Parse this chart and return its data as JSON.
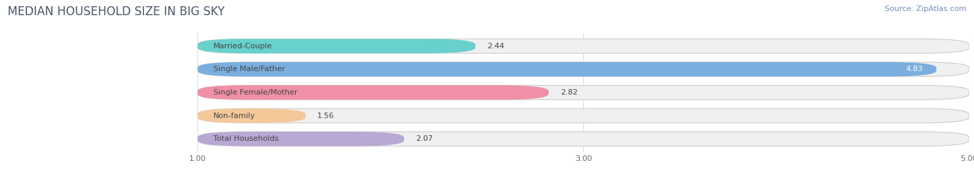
{
  "title": "MEDIAN HOUSEHOLD SIZE IN BIG SKY",
  "source": "Source: ZipAtlas.com",
  "categories": [
    "Married-Couple",
    "Single Male/Father",
    "Single Female/Mother",
    "Non-family",
    "Total Households"
  ],
  "values": [
    2.44,
    4.83,
    2.82,
    1.56,
    2.07
  ],
  "bar_colors": [
    "#68d1cc",
    "#7aaede",
    "#f090a8",
    "#f5c89a",
    "#b8a8d4"
  ],
  "bar_edge_colors": [
    "#68d1cc",
    "#7aaede",
    "#f090a8",
    "#f5c89a",
    "#b8a8d4"
  ],
  "label_colors": [
    "#444444",
    "#ffffff",
    "#444444",
    "#444444",
    "#444444"
  ],
  "xmin": 0.0,
  "xmax": 5.0,
  "xstart": 1.0,
  "xticks": [
    1.0,
    3.0,
    5.0
  ],
  "bar_height": 0.62,
  "bar_gap": 0.38,
  "figsize": [
    14.06,
    2.68
  ],
  "dpi": 100,
  "title_fontsize": 12,
  "label_fontsize": 8,
  "value_fontsize": 8,
  "tick_fontsize": 8,
  "source_fontsize": 8,
  "background_color": "#ffffff",
  "bar_bg_color": "#f0f0f0",
  "grid_color": "#dddddd",
  "rounding": 0.25
}
